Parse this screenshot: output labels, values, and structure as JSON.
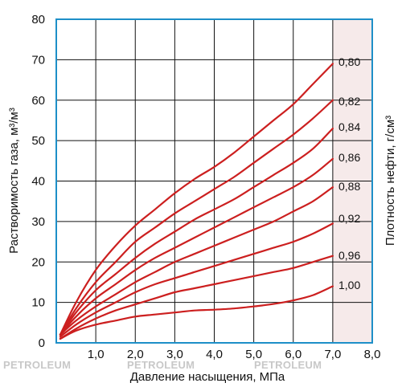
{
  "chart_data": {
    "type": "line",
    "xlabel": "Давление насыщения, МПа",
    "ylabel": "Растворимость газа, м³/м³",
    "right_label": "Плотность нефти, г/см³",
    "xlim": [
      0,
      8
    ],
    "ylim": [
      0,
      80
    ],
    "x_ticks": [
      "1,0",
      "2,0",
      "3,0",
      "4,0",
      "5,0",
      "6,0",
      "7,0",
      "8,0"
    ],
    "y_ticks": [
      "0",
      "10",
      "20",
      "30",
      "40",
      "50",
      "60",
      "70",
      "80"
    ],
    "grid": true,
    "shaded_band_x": [
      7,
      8
    ],
    "colors": {
      "curve": "#cc1f1f",
      "axes": "#1e8fc8",
      "grid": "#111111",
      "band": "#f6eaea"
    },
    "series": [
      {
        "name": "0,80",
        "x": [
          0.1,
          0.5,
          1,
          1.5,
          2,
          2.5,
          3,
          3.5,
          4,
          4.5,
          5,
          5.5,
          6,
          6.5,
          7
        ],
        "y": [
          2,
          10,
          18,
          24,
          29,
          33,
          37,
          40.5,
          43.5,
          47,
          51,
          55,
          59,
          64,
          69
        ]
      },
      {
        "name": "0,82",
        "x": [
          0.1,
          0.5,
          1,
          1.5,
          2,
          2.5,
          3,
          3.5,
          4,
          4.5,
          5,
          5.5,
          6,
          6.5,
          7
        ],
        "y": [
          2,
          8.5,
          15,
          20,
          25,
          28.5,
          32,
          35,
          38,
          41,
          44.5,
          48,
          51.5,
          55.5,
          60
        ]
      },
      {
        "name": "0,84",
        "x": [
          0.1,
          0.5,
          1,
          1.5,
          2,
          2.5,
          3,
          3.5,
          4,
          4.5,
          5,
          5.5,
          6,
          6.5,
          7
        ],
        "y": [
          2,
          7.5,
          13,
          17,
          21,
          24.5,
          27.5,
          30.5,
          33,
          35.5,
          38.5,
          41.5,
          44.5,
          48,
          53
        ]
      },
      {
        "name": "0,86",
        "x": [
          0.1,
          0.5,
          1,
          1.5,
          2,
          2.5,
          3,
          3.5,
          4,
          4.5,
          5,
          5.5,
          6,
          6.5,
          7
        ],
        "y": [
          2,
          6.5,
          11,
          14.5,
          18,
          21,
          23.5,
          26,
          28.5,
          31,
          33.5,
          36,
          38.5,
          41.5,
          45.5
        ]
      },
      {
        "name": "0,88",
        "x": [
          0.1,
          0.5,
          1,
          1.5,
          2,
          2.5,
          3,
          3.5,
          4,
          4.5,
          5,
          5.5,
          6,
          6.5,
          7
        ],
        "y": [
          2,
          5.5,
          9,
          12,
          15,
          17.5,
          20,
          22,
          24,
          26,
          28,
          30,
          32.5,
          35,
          38.5
        ]
      },
      {
        "name": "0,92",
        "x": [
          0.1,
          0.5,
          1,
          1.5,
          2,
          2.5,
          3,
          3.5,
          4,
          4.5,
          5,
          5.5,
          6,
          6.5,
          7
        ],
        "y": [
          1.5,
          4.5,
          7.5,
          10,
          12.5,
          14.5,
          16,
          17.5,
          19,
          20.5,
          22,
          23.5,
          25,
          27,
          29.5
        ]
      },
      {
        "name": "0,96",
        "x": [
          0.1,
          0.5,
          1,
          1.5,
          2,
          2.5,
          3,
          3.5,
          4,
          4.5,
          5,
          5.5,
          6,
          6.5,
          7
        ],
        "y": [
          1,
          3.5,
          6,
          8,
          9.5,
          11,
          12.5,
          13.5,
          14.5,
          15.5,
          16.5,
          17.5,
          18.5,
          20,
          21.5
        ]
      },
      {
        "name": "1,00",
        "x": [
          0.1,
          0.5,
          1,
          1.5,
          2,
          2.5,
          3,
          3.5,
          4,
          4.5,
          5,
          5.5,
          6,
          6.5,
          7
        ],
        "y": [
          1,
          3,
          4.5,
          5.5,
          6.5,
          7,
          7.5,
          8,
          8.2,
          8.5,
          9,
          9.6,
          10.5,
          11.8,
          14
        ]
      }
    ],
    "watermark": "PETROLEUM"
  }
}
